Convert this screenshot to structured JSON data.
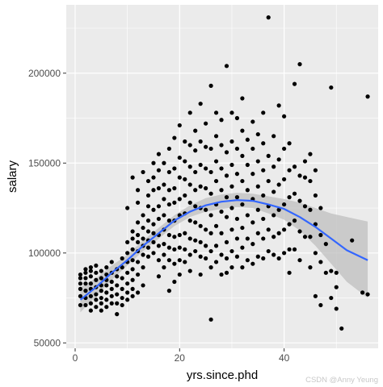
{
  "chart_data": {
    "type": "scatter",
    "xlabel": "yrs.since.phd",
    "ylabel": "salary",
    "xlim": [
      -1.7,
      58.0
    ],
    "ylim": [
      47000,
      238000
    ],
    "x_ticks": [
      0,
      20,
      40
    ],
    "y_ticks": [
      50000,
      100000,
      150000,
      200000
    ],
    "y_tick_labels": [
      "50000",
      "100000",
      "150000",
      "200000"
    ],
    "x_tick_labels": [
      "0",
      "20",
      "40"
    ],
    "grid": true,
    "background_color": "#ebebeb",
    "grid_color": "#ffffff",
    "point_color": "#000000",
    "smooth_color": "#3366ff",
    "ribbon_color": "#bfbfbf",
    "points": [
      [
        1,
        71000
      ],
      [
        1,
        76000
      ],
      [
        1,
        80000
      ],
      [
        1,
        83000
      ],
      [
        1,
        86000
      ],
      [
        1,
        88000
      ],
      [
        2,
        71000
      ],
      [
        2,
        75000
      ],
      [
        2,
        79000
      ],
      [
        2,
        83000
      ],
      [
        2,
        86000
      ],
      [
        2,
        89000
      ],
      [
        2,
        91000
      ],
      [
        3,
        68000
      ],
      [
        3,
        72000
      ],
      [
        3,
        76000
      ],
      [
        3,
        80000
      ],
      [
        3,
        83000
      ],
      [
        3,
        87000
      ],
      [
        3,
        90000
      ],
      [
        3,
        92000
      ],
      [
        4,
        70000
      ],
      [
        4,
        74000
      ],
      [
        4,
        77000
      ],
      [
        4,
        81000
      ],
      [
        4,
        85000
      ],
      [
        4,
        89000
      ],
      [
        4,
        93000
      ],
      [
        5,
        68000
      ],
      [
        5,
        72000
      ],
      [
        5,
        75000
      ],
      [
        5,
        79000
      ],
      [
        5,
        82000
      ],
      [
        5,
        86000
      ],
      [
        5,
        90000
      ],
      [
        6,
        70000
      ],
      [
        6,
        74000
      ],
      [
        6,
        78000
      ],
      [
        6,
        82000
      ],
      [
        6,
        85000
      ],
      [
        6,
        88000
      ],
      [
        6,
        92000
      ],
      [
        7,
        72000
      ],
      [
        7,
        76000
      ],
      [
        7,
        80000
      ],
      [
        7,
        84000
      ],
      [
        7,
        89000
      ],
      [
        7,
        95000
      ],
      [
        8,
        66000
      ],
      [
        8,
        72000
      ],
      [
        8,
        77000
      ],
      [
        8,
        82000
      ],
      [
        8,
        87000
      ],
      [
        8,
        91000
      ],
      [
        9,
        71000
      ],
      [
        9,
        75000
      ],
      [
        9,
        80000
      ],
      [
        9,
        86000
      ],
      [
        9,
        92000
      ],
      [
        9,
        97000
      ],
      [
        10,
        74000
      ],
      [
        10,
        78000
      ],
      [
        10,
        83000
      ],
      [
        10,
        89000
      ],
      [
        10,
        95000
      ],
      [
        10,
        100000
      ],
      [
        10,
        106000
      ],
      [
        10,
        125000
      ],
      [
        11,
        76000
      ],
      [
        11,
        80000
      ],
      [
        11,
        85000
      ],
      [
        11,
        91000
      ],
      [
        11,
        96000
      ],
      [
        11,
        102000
      ],
      [
        11,
        108000
      ],
      [
        11,
        112000
      ],
      [
        11,
        142000
      ],
      [
        12,
        78000
      ],
      [
        12,
        88000
      ],
      [
        12,
        95000
      ],
      [
        12,
        101000
      ],
      [
        12,
        106000
      ],
      [
        12,
        110000
      ],
      [
        12,
        117000
      ],
      [
        12,
        128000
      ],
      [
        12,
        135000
      ],
      [
        13,
        82000
      ],
      [
        13,
        92000
      ],
      [
        13,
        99000
      ],
      [
        13,
        104000
      ],
      [
        13,
        108000
      ],
      [
        13,
        114000
      ],
      [
        13,
        121000
      ],
      [
        13,
        145000
      ],
      [
        14,
        98000
      ],
      [
        14,
        103000
      ],
      [
        14,
        107000
      ],
      [
        14,
        112000
      ],
      [
        14,
        118000
      ],
      [
        14,
        126000
      ],
      [
        14,
        132000
      ],
      [
        14,
        140000
      ],
      [
        15,
        100000
      ],
      [
        15,
        106000
      ],
      [
        15,
        111000
      ],
      [
        15,
        116000
      ],
      [
        15,
        124000
      ],
      [
        15,
        135000
      ],
      [
        15,
        142000
      ],
      [
        15,
        150000
      ],
      [
        16,
        87000
      ],
      [
        16,
        96000
      ],
      [
        16,
        104000
      ],
      [
        16,
        110000
      ],
      [
        16,
        119000
      ],
      [
        16,
        126000
      ],
      [
        16,
        136000
      ],
      [
        16,
        146000
      ],
      [
        16,
        155000
      ],
      [
        17,
        92000
      ],
      [
        17,
        99000
      ],
      [
        17,
        105000
      ],
      [
        17,
        113000
      ],
      [
        17,
        121000
      ],
      [
        17,
        130000
      ],
      [
        17,
        138000
      ],
      [
        17,
        150000
      ],
      [
        18,
        79000
      ],
      [
        18,
        96000
      ],
      [
        18,
        103000
      ],
      [
        18,
        110000
      ],
      [
        18,
        118000
      ],
      [
        18,
        127000
      ],
      [
        18,
        135000
      ],
      [
        18,
        145000
      ],
      [
        18,
        158000
      ],
      [
        19,
        84000
      ],
      [
        19,
        94000
      ],
      [
        19,
        102000
      ],
      [
        19,
        109000
      ],
      [
        19,
        118000
      ],
      [
        19,
        128000
      ],
      [
        19,
        136000
      ],
      [
        19,
        147000
      ],
      [
        19,
        164000
      ],
      [
        20,
        88000
      ],
      [
        20,
        96000
      ],
      [
        20,
        103000
      ],
      [
        20,
        110000
      ],
      [
        20,
        121000
      ],
      [
        20,
        130000
      ],
      [
        20,
        142000
      ],
      [
        20,
        153000
      ],
      [
        20,
        171000
      ],
      [
        21,
        95000
      ],
      [
        21,
        102000
      ],
      [
        21,
        111000
      ],
      [
        21,
        122000
      ],
      [
        21,
        132000
      ],
      [
        21,
        141000
      ],
      [
        21,
        151000
      ],
      [
        21,
        162000
      ],
      [
        22,
        90000
      ],
      [
        22,
        99000
      ],
      [
        22,
        108000
      ],
      [
        22,
        118000
      ],
      [
        22,
        128000
      ],
      [
        22,
        138000
      ],
      [
        22,
        148000
      ],
      [
        22,
        160000
      ],
      [
        22,
        178000
      ],
      [
        23,
        101000
      ],
      [
        23,
        107000
      ],
      [
        23,
        117000
      ],
      [
        23,
        126000
      ],
      [
        23,
        135000
      ],
      [
        23,
        145000
      ],
      [
        23,
        157000
      ],
      [
        23,
        168000
      ],
      [
        24,
        88000
      ],
      [
        24,
        98000
      ],
      [
        24,
        106000
      ],
      [
        24,
        115000
      ],
      [
        24,
        125000
      ],
      [
        24,
        137000
      ],
      [
        24,
        149000
      ],
      [
        24,
        162000
      ],
      [
        24,
        183000
      ],
      [
        25,
        97000
      ],
      [
        25,
        104000
      ],
      [
        25,
        113000
      ],
      [
        25,
        124000
      ],
      [
        25,
        136000
      ],
      [
        25,
        147000
      ],
      [
        25,
        159000
      ],
      [
        25,
        172000
      ],
      [
        26,
        63000
      ],
      [
        26,
        92000
      ],
      [
        26,
        101000
      ],
      [
        26,
        111000
      ],
      [
        26,
        121000
      ],
      [
        26,
        133000
      ],
      [
        26,
        145000
      ],
      [
        26,
        158000
      ],
      [
        26,
        193000
      ],
      [
        27,
        95000
      ],
      [
        27,
        104000
      ],
      [
        27,
        115000
      ],
      [
        27,
        127000
      ],
      [
        27,
        140000
      ],
      [
        27,
        151000
      ],
      [
        27,
        165000
      ],
      [
        27,
        178000
      ],
      [
        28,
        88000
      ],
      [
        28,
        99000
      ],
      [
        28,
        111000
      ],
      [
        28,
        123000
      ],
      [
        28,
        135000
      ],
      [
        28,
        147000
      ],
      [
        28,
        160000
      ],
      [
        28,
        174000
      ],
      [
        29,
        89000
      ],
      [
        29,
        97000
      ],
      [
        29,
        106000
      ],
      [
        29,
        120000
      ],
      [
        29,
        131000
      ],
      [
        29,
        143000
      ],
      [
        29,
        156000
      ],
      [
        29,
        204000
      ],
      [
        30,
        92000
      ],
      [
        30,
        101000
      ],
      [
        30,
        113000
      ],
      [
        30,
        125000
      ],
      [
        30,
        137000
      ],
      [
        30,
        149000
      ],
      [
        30,
        162000
      ],
      [
        30,
        178000
      ],
      [
        31,
        98000
      ],
      [
        31,
        108000
      ],
      [
        31,
        119000
      ],
      [
        31,
        131000
      ],
      [
        31,
        144000
      ],
      [
        31,
        158000
      ],
      [
        31,
        175000
      ],
      [
        32,
        92000
      ],
      [
        32,
        103000
      ],
      [
        32,
        114000
      ],
      [
        32,
        127000
      ],
      [
        32,
        140000
      ],
      [
        32,
        154000
      ],
      [
        32,
        168000
      ],
      [
        32,
        186000
      ],
      [
        33,
        96000
      ],
      [
        33,
        108000
      ],
      [
        33,
        121000
      ],
      [
        33,
        135000
      ],
      [
        33,
        149000
      ],
      [
        33,
        163000
      ],
      [
        34,
        94000
      ],
      [
        34,
        105000
      ],
      [
        34,
        117000
      ],
      [
        34,
        130000
      ],
      [
        34,
        144000
      ],
      [
        34,
        158000
      ],
      [
        34,
        173000
      ],
      [
        35,
        98000
      ],
      [
        35,
        111000
      ],
      [
        35,
        124000
      ],
      [
        35,
        137000
      ],
      [
        35,
        151000
      ],
      [
        35,
        166000
      ],
      [
        36,
        97000
      ],
      [
        36,
        108000
      ],
      [
        36,
        119000
      ],
      [
        36,
        132000
      ],
      [
        36,
        146000
      ],
      [
        36,
        161000
      ],
      [
        36,
        178000
      ],
      [
        37,
        101000
      ],
      [
        37,
        113000
      ],
      [
        37,
        126000
      ],
      [
        37,
        140000
      ],
      [
        37,
        154000
      ],
      [
        37,
        231000
      ],
      [
        38,
        99000
      ],
      [
        38,
        109000
      ],
      [
        38,
        121000
      ],
      [
        38,
        134000
      ],
      [
        38,
        148000
      ],
      [
        38,
        165000
      ],
      [
        39,
        97000
      ],
      [
        39,
        111000
      ],
      [
        39,
        124000
      ],
      [
        39,
        138000
      ],
      [
        39,
        152000
      ],
      [
        39,
        182000
      ],
      [
        40,
        100000
      ],
      [
        40,
        113000
      ],
      [
        40,
        127000
      ],
      [
        40,
        141000
      ],
      [
        40,
        158000
      ],
      [
        40,
        176000
      ],
      [
        41,
        89000
      ],
      [
        41,
        102000
      ],
      [
        41,
        116000
      ],
      [
        41,
        131000
      ],
      [
        41,
        146000
      ],
      [
        41,
        161000
      ],
      [
        42,
        102000
      ],
      [
        42,
        118000
      ],
      [
        42,
        133000
      ],
      [
        42,
        148000
      ],
      [
        42,
        194000
      ],
      [
        43,
        96000
      ],
      [
        43,
        112000
      ],
      [
        43,
        129000
      ],
      [
        43,
        143000
      ],
      [
        43,
        205000
      ],
      [
        44,
        109000
      ],
      [
        44,
        126000
      ],
      [
        44,
        142000
      ],
      [
        44,
        151000
      ],
      [
        45,
        92000
      ],
      [
        45,
        109000
      ],
      [
        45,
        124000
      ],
      [
        45,
        140000
      ],
      [
        45,
        155000
      ],
      [
        46,
        76000
      ],
      [
        46,
        100000
      ],
      [
        46,
        116000
      ],
      [
        46,
        132000
      ],
      [
        46,
        146000
      ],
      [
        47,
        71000
      ],
      [
        47,
        95000
      ],
      [
        47,
        110000
      ],
      [
        47,
        125000
      ],
      [
        48,
        89000
      ],
      [
        48,
        105000
      ],
      [
        49,
        90000
      ],
      [
        49,
        75000
      ],
      [
        49,
        192000
      ],
      [
        50,
        89000
      ],
      [
        50,
        81000
      ],
      [
        50,
        69000
      ],
      [
        51,
        58000
      ],
      [
        53,
        107000
      ],
      [
        55,
        78000
      ],
      [
        56,
        187000
      ],
      [
        56,
        77000
      ]
    ],
    "smooth_line": [
      [
        1,
        74000
      ],
      [
        4,
        81000
      ],
      [
        7,
        89000
      ],
      [
        10,
        96000
      ],
      [
        13,
        104000
      ],
      [
        16,
        111000
      ],
      [
        19,
        118000
      ],
      [
        22,
        123000
      ],
      [
        25,
        126500
      ],
      [
        28,
        128500
      ],
      [
        31,
        129400
      ],
      [
        34,
        129000
      ],
      [
        37,
        127000
      ],
      [
        40,
        124500
      ],
      [
        43,
        120000
      ],
      [
        46,
        114500
      ],
      [
        49,
        108000
      ],
      [
        52,
        101500
      ],
      [
        56,
        96000
      ]
    ],
    "ribbon_upper": [
      [
        1,
        81000
      ],
      [
        4,
        86000
      ],
      [
        7,
        93000
      ],
      [
        10,
        99000
      ],
      [
        13,
        107000
      ],
      [
        16,
        114000
      ],
      [
        19,
        121000
      ],
      [
        22,
        126500
      ],
      [
        25,
        130500
      ],
      [
        28,
        132500
      ],
      [
        31,
        133500
      ],
      [
        34,
        133000
      ],
      [
        37,
        131500
      ],
      [
        40,
        130000
      ],
      [
        43,
        128000
      ],
      [
        46,
        125000
      ],
      [
        49,
        122000
      ],
      [
        52,
        120000
      ],
      [
        56,
        117500
      ]
    ],
    "ribbon_lower": [
      [
        1,
        67000
      ],
      [
        4,
        76000
      ],
      [
        7,
        85000
      ],
      [
        10,
        93000
      ],
      [
        13,
        101000
      ],
      [
        16,
        108000
      ],
      [
        19,
        115000
      ],
      [
        22,
        120000
      ],
      [
        25,
        123000
      ],
      [
        28,
        124500
      ],
      [
        31,
        125500
      ],
      [
        34,
        125000
      ],
      [
        37,
        122000
      ],
      [
        40,
        118500
      ],
      [
        43,
        112500
      ],
      [
        46,
        104000
      ],
      [
        49,
        94000
      ],
      [
        52,
        84000
      ],
      [
        56,
        75000
      ]
    ]
  },
  "watermark": "CSDN @Anny Yeung"
}
